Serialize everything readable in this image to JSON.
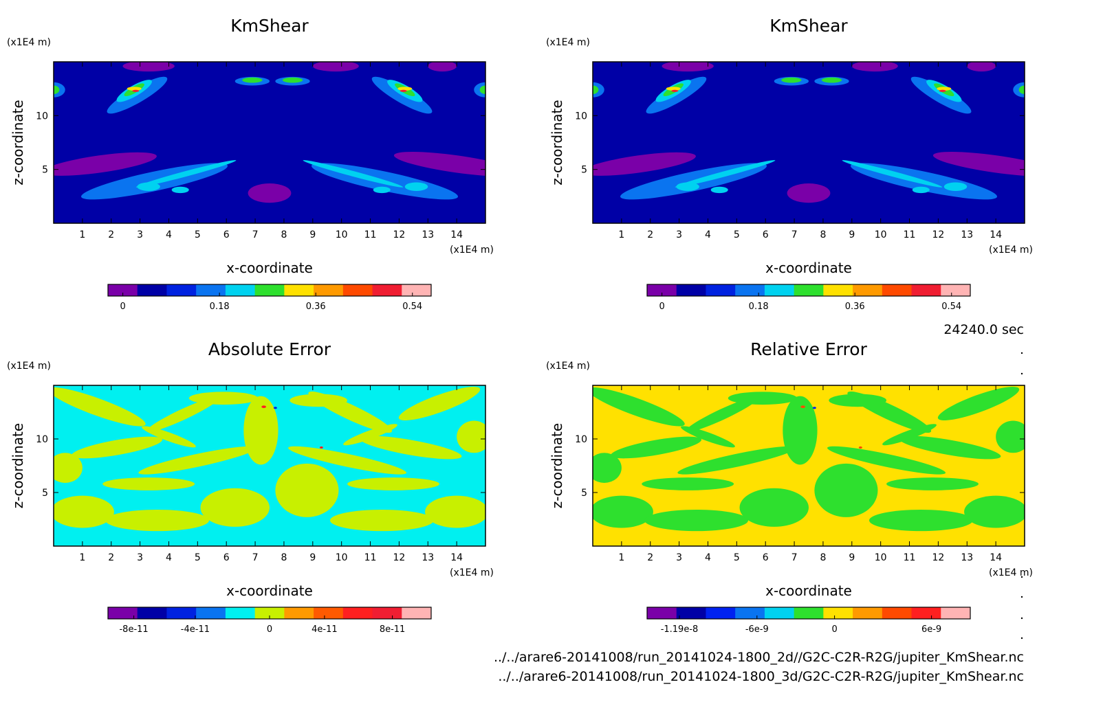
{
  "footer": {
    "time_label": "24240.0 sec",
    "path_2d": "../../arare6-20141008/run_20141024-1800_2d//G2C-C2R-R2G/jupiter_KmShear.nc",
    "path_3d": "../../arare6-20141008/run_20141024-1800_3d/G2C-C2R-R2G/jupiter_KmShear.nc"
  },
  "chart_data": [
    {
      "type": "heatmap",
      "title": "KmShear",
      "xlabel": "x-coordinate",
      "ylabel": "z-coordinate",
      "x_unit": "(x1E4 m)",
      "y_unit": "(x1E4 m)",
      "xlim": [
        0,
        15
      ],
      "ylim": [
        0,
        15
      ],
      "x_ticks": [
        "1",
        "2",
        "3",
        "4",
        "5",
        "6",
        "7",
        "8",
        "9",
        "10",
        "11",
        "12",
        "13",
        "14"
      ],
      "y_ticks": [
        "5",
        "10"
      ],
      "colorbar": {
        "colors": [
          "#7a00a8",
          "#0000a6",
          "#0022e0",
          "#0a74f0",
          "#00d2f0",
          "#2ee02e",
          "#ffe100",
          "#ff9a00",
          "#ff4a00",
          "#f01e32",
          "#ffb4b4"
        ],
        "tick_labels": [
          "0",
          "0.18",
          "0.36",
          "0.54"
        ]
      },
      "field": "kmshear"
    },
    {
      "type": "heatmap",
      "title": "KmShear",
      "xlabel": "x-coordinate",
      "ylabel": "z-coordinate",
      "x_unit": "(x1E4 m)",
      "y_unit": "(x1E4 m)",
      "xlim": [
        0,
        15
      ],
      "ylim": [
        0,
        15
      ],
      "x_ticks": [
        "1",
        "2",
        "3",
        "4",
        "5",
        "6",
        "7",
        "8",
        "9",
        "10",
        "11",
        "12",
        "13",
        "14"
      ],
      "y_ticks": [
        "5",
        "10"
      ],
      "colorbar": {
        "colors": [
          "#7a00a8",
          "#0000a6",
          "#0022e0",
          "#0a74f0",
          "#00d2f0",
          "#2ee02e",
          "#ffe100",
          "#ff9a00",
          "#ff4a00",
          "#f01e32",
          "#ffb4b4"
        ],
        "tick_labels": [
          "0",
          "0.18",
          "0.36",
          "0.54"
        ]
      },
      "field": "kmshear"
    },
    {
      "type": "heatmap",
      "title": "Absolute Error",
      "xlabel": "x-coordinate",
      "ylabel": "z-coordinate",
      "x_unit": "(x1E4 m)",
      "y_unit": "(x1E4 m)",
      "xlim": [
        0,
        15
      ],
      "ylim": [
        0,
        15
      ],
      "x_ticks": [
        "1",
        "2",
        "3",
        "4",
        "5",
        "6",
        "7",
        "8",
        "9",
        "10",
        "11",
        "12",
        "13",
        "14"
      ],
      "y_ticks": [
        "5",
        "10"
      ],
      "colorbar": {
        "colors": [
          "#7a00a8",
          "#0000a6",
          "#0022e0",
          "#0a74f0",
          "#00f0f0",
          "#c8f000",
          "#ff9a00",
          "#ff5a00",
          "#ff2020",
          "#f01e32",
          "#ffb4b4"
        ],
        "tick_labels": [
          "-8e-11",
          "-4e-11",
          "0",
          "4e-11",
          "8e-11"
        ]
      },
      "field": "abserr"
    },
    {
      "type": "heatmap",
      "title": "Relative Error",
      "xlabel": "x-coordinate",
      "ylabel": "z-coordinate",
      "x_unit": "(x1E4 m)",
      "y_unit": "(x1E4 m)",
      "xlim": [
        0,
        15
      ],
      "ylim": [
        0,
        15
      ],
      "x_ticks": [
        "1",
        "2",
        "3",
        "4",
        "5",
        "6",
        "7",
        "8",
        "9",
        "10",
        "11",
        "12",
        "13",
        "14"
      ],
      "y_ticks": [
        "5",
        "10"
      ],
      "colorbar": {
        "colors": [
          "#7a00a8",
          "#0000a6",
          "#0022f0",
          "#0a74f0",
          "#00d2f0",
          "#2ee02e",
          "#ffe100",
          "#ff9a00",
          "#ff4a00",
          "#ff2020",
          "#ffb4b4"
        ],
        "tick_labels": [
          "-1.19e-8",
          "-6e-9",
          "0",
          "6e-9"
        ]
      },
      "field": "relerr"
    }
  ]
}
